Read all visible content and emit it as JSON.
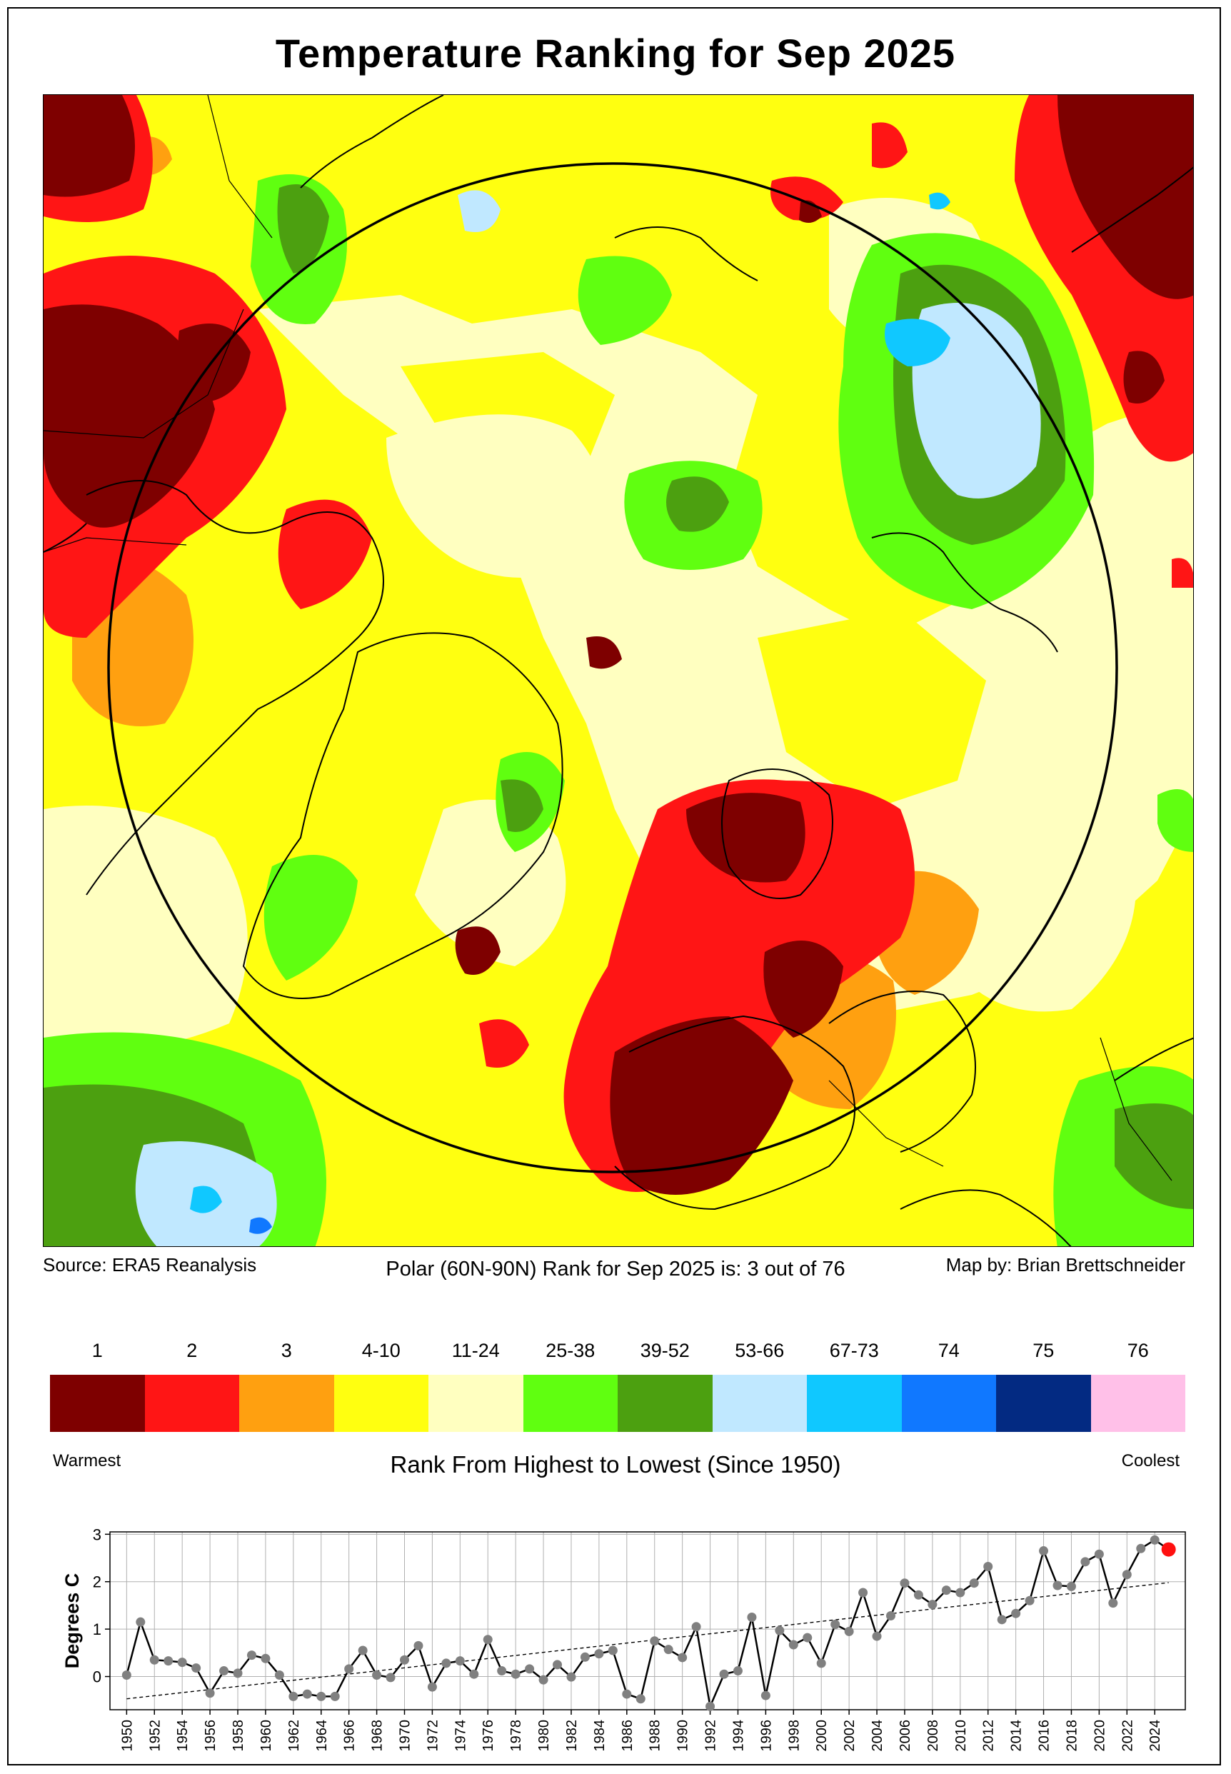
{
  "title": "Temperature Ranking for Sep 2025",
  "footer": {
    "source": "Source: ERA5 Reanalysis",
    "rank_text": "Polar (60N-90N) Rank for Sep 2025 is: 3 out of 76",
    "map_by": "Map by: Brian Brettschneider"
  },
  "legend": {
    "categories": [
      {
        "label": "1",
        "color": "#7e0000"
      },
      {
        "label": "2",
        "color": "#ff1515"
      },
      {
        "label": "3",
        "color": "#ffa010"
      },
      {
        "label": "4-10",
        "color": "#ffff10"
      },
      {
        "label": "11-24",
        "color": "#ffffc0"
      },
      {
        "label": "25-38",
        "color": "#60ff10"
      },
      {
        "label": "39-52",
        "color": "#4ca010"
      },
      {
        "label": "53-66",
        "color": "#c0e8ff"
      },
      {
        "label": "67-73",
        "color": "#10c8ff"
      },
      {
        "label": "74",
        "color": "#1078ff"
      },
      {
        "label": "75",
        "color": "#032a82"
      },
      {
        "label": "76",
        "color": "#ffc0e8"
      }
    ],
    "warmest_label": "Warmest",
    "coolest_label": "Coolest",
    "axis_title": "Rank From Highest to Lowest (Since 1950)"
  },
  "chart_data": {
    "type": "line",
    "ylabel": "Degrees C",
    "xlim": [
      1950,
      2025
    ],
    "ylim": [
      -0.7,
      3.05
    ],
    "yticks": [
      0,
      1,
      2,
      3
    ],
    "xticks": [
      1950,
      1952,
      1954,
      1956,
      1958,
      1960,
      1962,
      1964,
      1966,
      1968,
      1970,
      1972,
      1974,
      1976,
      1978,
      1980,
      1982,
      1984,
      1986,
      1988,
      1990,
      1992,
      1994,
      1996,
      1998,
      2000,
      2002,
      2004,
      2006,
      2008,
      2010,
      2012,
      2014,
      2016,
      2018,
      2020,
      2022,
      2024
    ],
    "grid": true,
    "x": [
      1950,
      1951,
      1952,
      1953,
      1954,
      1955,
      1956,
      1957,
      1958,
      1959,
      1960,
      1961,
      1962,
      1963,
      1964,
      1965,
      1966,
      1967,
      1968,
      1969,
      1970,
      1971,
      1972,
      1973,
      1974,
      1975,
      1976,
      1977,
      1978,
      1979,
      1980,
      1981,
      1982,
      1983,
      1984,
      1985,
      1986,
      1987,
      1988,
      1989,
      1990,
      1991,
      1992,
      1993,
      1994,
      1995,
      1996,
      1997,
      1998,
      1999,
      2000,
      2001,
      2002,
      2003,
      2004,
      2005,
      2006,
      2007,
      2008,
      2009,
      2010,
      2011,
      2012,
      2013,
      2014,
      2015,
      2016,
      2017,
      2018,
      2019,
      2020,
      2021,
      2022,
      2023,
      2024,
      2025
    ],
    "values": [
      0.03,
      1.15,
      0.35,
      0.33,
      0.3,
      0.18,
      -0.35,
      0.12,
      0.07,
      0.45,
      0.38,
      0.03,
      -0.42,
      -0.37,
      -0.42,
      -0.42,
      0.16,
      0.55,
      0.03,
      -0.02,
      0.35,
      0.65,
      -0.22,
      0.28,
      0.33,
      0.05,
      0.78,
      0.12,
      0.05,
      0.16,
      -0.07,
      0.25,
      -0.01,
      0.41,
      0.48,
      0.55,
      -0.37,
      -0.47,
      0.75,
      0.57,
      0.4,
      1.05,
      -0.63,
      0.05,
      0.12,
      1.25,
      -0.4,
      0.97,
      0.67,
      0.82,
      0.28,
      1.1,
      0.95,
      1.77,
      0.85,
      1.28,
      1.97,
      1.72,
      1.52,
      1.82,
      1.77,
      1.97,
      2.32,
      1.2,
      1.33,
      1.6,
      2.65,
      1.92,
      1.9,
      2.42,
      2.58,
      1.55,
      2.15,
      2.7,
      2.88,
      2.68
    ],
    "trend": {
      "start": [
        1950,
        -0.47
      ],
      "end": [
        2025,
        1.98
      ]
    },
    "highlight": {
      "year": 2025,
      "value": 2.68,
      "color": "#ff1010"
    }
  }
}
